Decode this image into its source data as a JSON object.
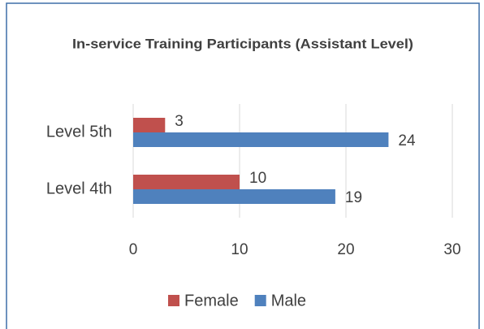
{
  "chart_data": {
    "type": "hbar",
    "title": "In-service Training Participants (Assistant Level)",
    "categories": [
      "Level 5th",
      "Level 4th"
    ],
    "series": [
      {
        "name": "Female",
        "color": "#c0504d",
        "values": [
          3,
          10
        ]
      },
      {
        "name": "Male",
        "color": "#4f81bd",
        "values": [
          24,
          19
        ]
      }
    ],
    "xlim": [
      0,
      30
    ],
    "xticks": [
      0,
      10,
      20,
      30
    ],
    "grid": true,
    "legend": "bottom"
  }
}
